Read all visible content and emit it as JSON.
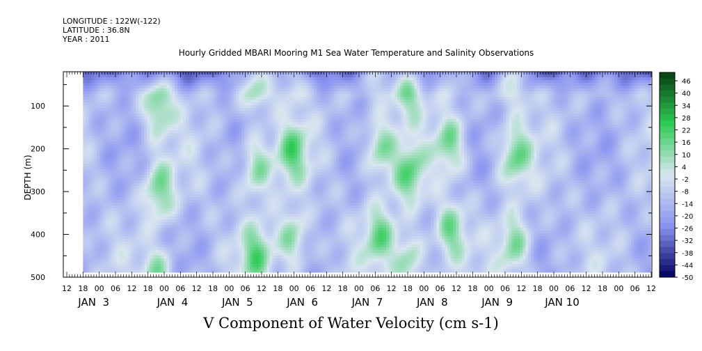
{
  "header": {
    "longitude": "LONGITUDE : 122W(-122)",
    "latitude": "LATITUDE : 36.8N",
    "year": "YEAR : 2011"
  },
  "chart_data": {
    "type": "heatmap",
    "title": "Hourly Gridded MBARI Mooring M1 Sea Water Temperature and Salinity Observations",
    "xlabel": "V Component of Water Velocity (cm s-1)",
    "ylabel": "DEPTH (m)",
    "ylim": [
      500,
      20
    ],
    "y_ticks": [
      100,
      200,
      300,
      400,
      500
    ],
    "x_hour_ticks": [
      "12",
      "18",
      "00",
      "06",
      "12",
      "18",
      "00",
      "06",
      "12",
      "18",
      "00",
      "06",
      "12",
      "18",
      "00",
      "06",
      "12",
      "18",
      "00",
      "06",
      "12",
      "18",
      "00",
      "06",
      "12",
      "18",
      "00",
      "06",
      "12",
      "18",
      "00",
      "06",
      "12",
      "18",
      "00",
      "06",
      "12"
    ],
    "x_day_labels": [
      "JAN  3",
      "JAN  4",
      "JAN  5",
      "JAN  6",
      "JAN  7",
      "JAN  8",
      "JAN  9",
      "JAN 10"
    ],
    "data_depth_range": [
      20,
      485
    ],
    "colorbar": {
      "labels": [
        "46",
        "40",
        "34",
        "28",
        "22",
        "16",
        "10",
        "4",
        "-2",
        "-8",
        "-14",
        "-20",
        "-26",
        "-32",
        "-38",
        "-44",
        "-50"
      ],
      "range": [
        -50,
        50
      ],
      "colors": {
        "max": "#0a3d14",
        "positive": "#2ecc55",
        "zero": "#d8e6f0",
        "negative": "#8a94f0",
        "min": "#000060"
      }
    },
    "green_band_days": [
      0.9,
      2.4,
      2.95,
      4.3,
      4.75,
      5.38,
      6.38
    ],
    "blue_surface_depth_m": 70
  }
}
